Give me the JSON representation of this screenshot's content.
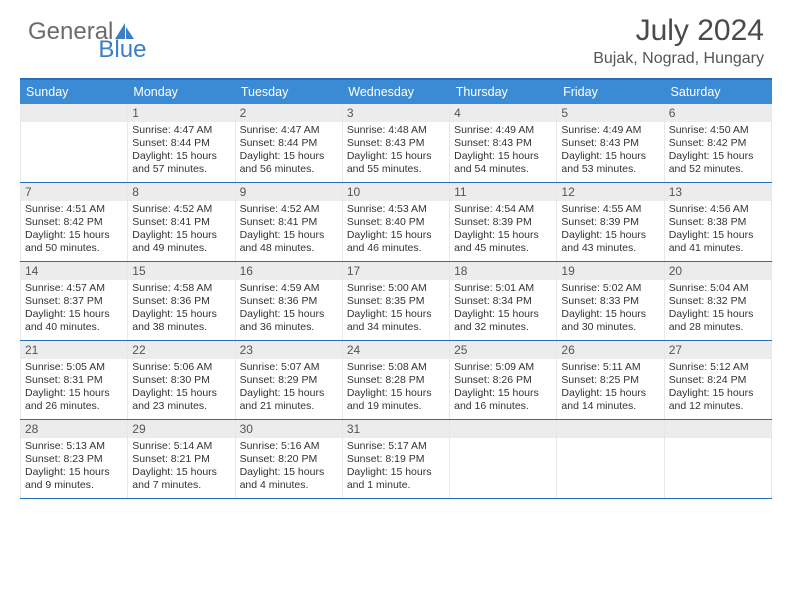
{
  "logo": {
    "text1": "General",
    "text2": "Blue"
  },
  "title": "July 2024",
  "subtitle": "Bujak, Nograd, Hungary",
  "colors": {
    "header_blue": "#3b8bd4",
    "rule_blue": "#2a6db8",
    "daynum_bg": "#ececec",
    "text": "#333333",
    "logo_gray": "#6b6b6b",
    "logo_blue": "#3b7fc4"
  },
  "dow": [
    "Sunday",
    "Monday",
    "Tuesday",
    "Wednesday",
    "Thursday",
    "Friday",
    "Saturday"
  ],
  "weeks": [
    [
      {
        "n": "",
        "sr": "",
        "ss": "",
        "dl": ""
      },
      {
        "n": "1",
        "sr": "4:47 AM",
        "ss": "8:44 PM",
        "dl": "15 hours and 57 minutes."
      },
      {
        "n": "2",
        "sr": "4:47 AM",
        "ss": "8:44 PM",
        "dl": "15 hours and 56 minutes."
      },
      {
        "n": "3",
        "sr": "4:48 AM",
        "ss": "8:43 PM",
        "dl": "15 hours and 55 minutes."
      },
      {
        "n": "4",
        "sr": "4:49 AM",
        "ss": "8:43 PM",
        "dl": "15 hours and 54 minutes."
      },
      {
        "n": "5",
        "sr": "4:49 AM",
        "ss": "8:43 PM",
        "dl": "15 hours and 53 minutes."
      },
      {
        "n": "6",
        "sr": "4:50 AM",
        "ss": "8:42 PM",
        "dl": "15 hours and 52 minutes."
      }
    ],
    [
      {
        "n": "7",
        "sr": "4:51 AM",
        "ss": "8:42 PM",
        "dl": "15 hours and 50 minutes."
      },
      {
        "n": "8",
        "sr": "4:52 AM",
        "ss": "8:41 PM",
        "dl": "15 hours and 49 minutes."
      },
      {
        "n": "9",
        "sr": "4:52 AM",
        "ss": "8:41 PM",
        "dl": "15 hours and 48 minutes."
      },
      {
        "n": "10",
        "sr": "4:53 AM",
        "ss": "8:40 PM",
        "dl": "15 hours and 46 minutes."
      },
      {
        "n": "11",
        "sr": "4:54 AM",
        "ss": "8:39 PM",
        "dl": "15 hours and 45 minutes."
      },
      {
        "n": "12",
        "sr": "4:55 AM",
        "ss": "8:39 PM",
        "dl": "15 hours and 43 minutes."
      },
      {
        "n": "13",
        "sr": "4:56 AM",
        "ss": "8:38 PM",
        "dl": "15 hours and 41 minutes."
      }
    ],
    [
      {
        "n": "14",
        "sr": "4:57 AM",
        "ss": "8:37 PM",
        "dl": "15 hours and 40 minutes."
      },
      {
        "n": "15",
        "sr": "4:58 AM",
        "ss": "8:36 PM",
        "dl": "15 hours and 38 minutes."
      },
      {
        "n": "16",
        "sr": "4:59 AM",
        "ss": "8:36 PM",
        "dl": "15 hours and 36 minutes."
      },
      {
        "n": "17",
        "sr": "5:00 AM",
        "ss": "8:35 PM",
        "dl": "15 hours and 34 minutes."
      },
      {
        "n": "18",
        "sr": "5:01 AM",
        "ss": "8:34 PM",
        "dl": "15 hours and 32 minutes."
      },
      {
        "n": "19",
        "sr": "5:02 AM",
        "ss": "8:33 PM",
        "dl": "15 hours and 30 minutes."
      },
      {
        "n": "20",
        "sr": "5:04 AM",
        "ss": "8:32 PM",
        "dl": "15 hours and 28 minutes."
      }
    ],
    [
      {
        "n": "21",
        "sr": "5:05 AM",
        "ss": "8:31 PM",
        "dl": "15 hours and 26 minutes."
      },
      {
        "n": "22",
        "sr": "5:06 AM",
        "ss": "8:30 PM",
        "dl": "15 hours and 23 minutes."
      },
      {
        "n": "23",
        "sr": "5:07 AM",
        "ss": "8:29 PM",
        "dl": "15 hours and 21 minutes."
      },
      {
        "n": "24",
        "sr": "5:08 AM",
        "ss": "8:28 PM",
        "dl": "15 hours and 19 minutes."
      },
      {
        "n": "25",
        "sr": "5:09 AM",
        "ss": "8:26 PM",
        "dl": "15 hours and 16 minutes."
      },
      {
        "n": "26",
        "sr": "5:11 AM",
        "ss": "8:25 PM",
        "dl": "15 hours and 14 minutes."
      },
      {
        "n": "27",
        "sr": "5:12 AM",
        "ss": "8:24 PM",
        "dl": "15 hours and 12 minutes."
      }
    ],
    [
      {
        "n": "28",
        "sr": "5:13 AM",
        "ss": "8:23 PM",
        "dl": "15 hours and 9 minutes."
      },
      {
        "n": "29",
        "sr": "5:14 AM",
        "ss": "8:21 PM",
        "dl": "15 hours and 7 minutes."
      },
      {
        "n": "30",
        "sr": "5:16 AM",
        "ss": "8:20 PM",
        "dl": "15 hours and 4 minutes."
      },
      {
        "n": "31",
        "sr": "5:17 AM",
        "ss": "8:19 PM",
        "dl": "15 hours and 1 minute."
      },
      {
        "n": "",
        "sr": "",
        "ss": "",
        "dl": ""
      },
      {
        "n": "",
        "sr": "",
        "ss": "",
        "dl": ""
      },
      {
        "n": "",
        "sr": "",
        "ss": "",
        "dl": ""
      }
    ]
  ],
  "labels": {
    "sunrise": "Sunrise: ",
    "sunset": "Sunset: ",
    "daylight": "Daylight: "
  }
}
